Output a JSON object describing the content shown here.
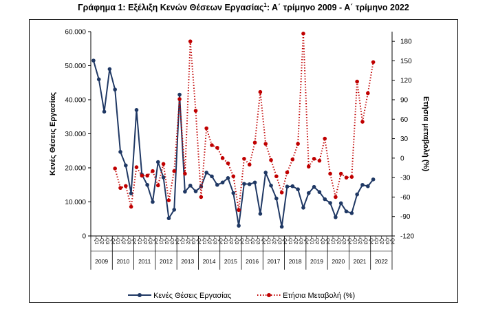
{
  "title_main": "Γράφημα 1: Εξέλιξη Κενών Θέσεων Εργασίας",
  "title_sup": "1",
  "title_rest": ": Α΄ τρίμηνο 2009 - Α΄ τρίμηνο 2022",
  "colors": {
    "vacancies": "#1f3864",
    "change": "#c00000",
    "axis": "#000000"
  },
  "chart_data": {
    "type": "line",
    "title": "Γράφημα 1: Εξέλιξη Κενών Θέσεων Εργασίας1: Α΄ τρίμηνο 2009 - Α΄ τρίμηνο 2022",
    "ylabel": "Κενές Θέσεις Εργασίας",
    "y2label": "Ετήσια μεταβολή (%)",
    "ylim": [
      0,
      60000
    ],
    "y_ticks": [
      "0",
      "10.000",
      "20.000",
      "30.000",
      "40.000",
      "50.000",
      "60.000"
    ],
    "y2lim": [
      -120,
      195
    ],
    "y2_ticks": [
      "-120",
      "-90",
      "-60",
      "-30",
      "0",
      "30",
      "60",
      "90",
      "120",
      "150",
      "180"
    ],
    "quarter_labels": [
      "Q1",
      "Q2",
      "Q3",
      "Q4"
    ],
    "years": [
      "2009",
      "2010",
      "2011",
      "2012",
      "2013",
      "2014",
      "2015",
      "2016",
      "2017",
      "2018",
      "2019",
      "2020",
      "2021",
      "2022"
    ],
    "legend_position": "bottom",
    "series": [
      {
        "name": "Κενές Θέσεις Εργασίας",
        "axis": "left",
        "style": "solid",
        "values": [
          51500,
          46000,
          36500,
          49000,
          43000,
          24700,
          20700,
          12500,
          37000,
          18000,
          15000,
          10000,
          21700,
          17200,
          5200,
          7700,
          41500,
          13000,
          14800,
          13100,
          14500,
          18600,
          17500,
          15000,
          15700,
          17000,
          12600,
          3000,
          15300,
          15200,
          15700,
          6500,
          18600,
          14800,
          11000,
          2700,
          14500,
          14600,
          13700,
          8300,
          12600,
          14400,
          12900,
          10800,
          9700,
          5500,
          9600,
          7200,
          6700,
          12200,
          15000,
          14600,
          16600,
          null,
          null,
          null
        ]
      },
      {
        "name": "Ετήσια Μεταβολή (%)",
        "axis": "right",
        "style": "dotted",
        "values": [
          null,
          null,
          null,
          null,
          -16,
          -46,
          -43,
          -75,
          -14,
          -27,
          -27,
          -20,
          -42,
          -9,
          -65,
          -20,
          91,
          -24,
          180,
          73,
          -60,
          46,
          20,
          16,
          0,
          -8,
          -28,
          -80,
          -1,
          -10,
          24,
          102,
          22,
          -3,
          -28,
          -53,
          -22,
          -2,
          22,
          192,
          -13,
          -1,
          -4,
          30,
          -24,
          -60,
          -24,
          -30,
          -29,
          118,
          56,
          100,
          148,
          null,
          null,
          null
        ]
      }
    ]
  }
}
